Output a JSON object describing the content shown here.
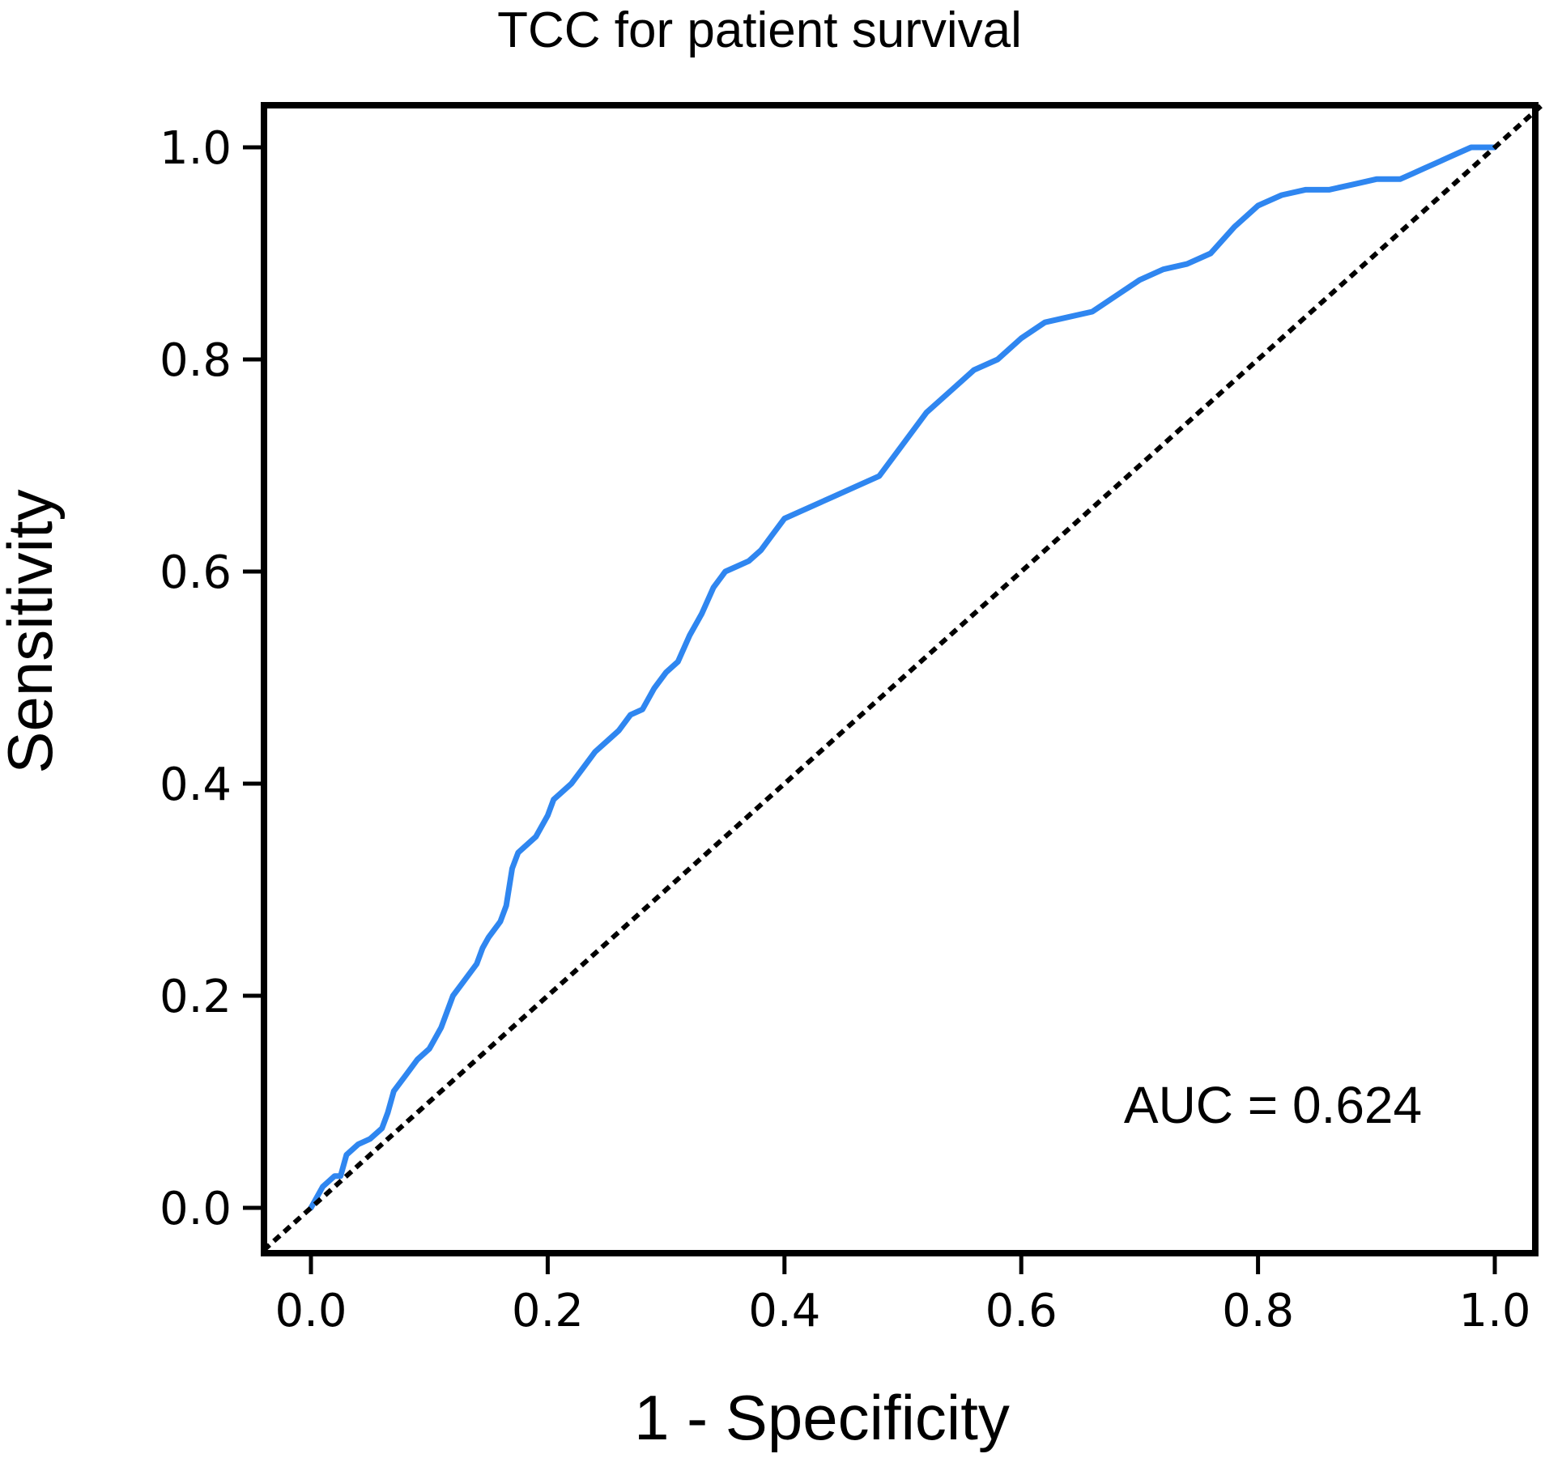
{
  "chart_data": {
    "type": "line",
    "title": "TCC for patient survival",
    "xlabel": "1 - Specificity",
    "ylabel": "Sensitivity",
    "xlim": [
      0,
      1
    ],
    "ylim": [
      0,
      1
    ],
    "x_ticks": [
      "0.0",
      "0.2",
      "0.4",
      "0.6",
      "0.8",
      "1.0"
    ],
    "y_ticks": [
      "0.0",
      "0.2",
      "0.4",
      "0.6",
      "0.8",
      "1.0"
    ],
    "annotation": "AUC = 0.624",
    "grid": false,
    "colors": {
      "roc": "#2f86f0",
      "reference": "#000000",
      "frame": "#000000"
    },
    "series": [
      {
        "name": "ROC curve",
        "style": "solid",
        "x": [
          0.0,
          0.01,
          0.02,
          0.025,
          0.03,
          0.04,
          0.05,
          0.06,
          0.065,
          0.07,
          0.08,
          0.09,
          0.1,
          0.105,
          0.11,
          0.12,
          0.13,
          0.14,
          0.145,
          0.15,
          0.16,
          0.165,
          0.17,
          0.175,
          0.18,
          0.19,
          0.2,
          0.205,
          0.21,
          0.22,
          0.23,
          0.24,
          0.25,
          0.26,
          0.27,
          0.28,
          0.29,
          0.3,
          0.31,
          0.32,
          0.33,
          0.34,
          0.35,
          0.36,
          0.37,
          0.38,
          0.39,
          0.4,
          0.42,
          0.44,
          0.46,
          0.48,
          0.5,
          0.52,
          0.54,
          0.56,
          0.58,
          0.6,
          0.62,
          0.64,
          0.66,
          0.68,
          0.7,
          0.72,
          0.74,
          0.76,
          0.78,
          0.8,
          0.82,
          0.84,
          0.86,
          0.88,
          0.9,
          0.92,
          0.93,
          0.94,
          0.95,
          0.96,
          0.97,
          0.98,
          0.99,
          1.0
        ],
        "y": [
          0.0,
          0.02,
          0.03,
          0.03,
          0.05,
          0.06,
          0.065,
          0.075,
          0.09,
          0.11,
          0.125,
          0.14,
          0.15,
          0.16,
          0.17,
          0.2,
          0.215,
          0.23,
          0.245,
          0.255,
          0.27,
          0.285,
          0.32,
          0.335,
          0.34,
          0.35,
          0.37,
          0.385,
          0.39,
          0.4,
          0.415,
          0.43,
          0.44,
          0.45,
          0.465,
          0.47,
          0.49,
          0.505,
          0.515,
          0.54,
          0.56,
          0.585,
          0.6,
          0.605,
          0.61,
          0.62,
          0.635,
          0.65,
          0.66,
          0.67,
          0.68,
          0.69,
          0.72,
          0.75,
          0.77,
          0.79,
          0.8,
          0.82,
          0.835,
          0.84,
          0.845,
          0.86,
          0.875,
          0.885,
          0.89,
          0.9,
          0.925,
          0.945,
          0.955,
          0.96,
          0.96,
          0.965,
          0.97,
          0.97,
          0.975,
          0.98,
          0.985,
          0.99,
          0.995,
          1.0,
          1.0,
          1.0
        ]
      },
      {
        "name": "Reference line",
        "style": "dotted",
        "x": [
          -0.04,
          1.04
        ],
        "y": [
          -0.04,
          1.04
        ]
      }
    ]
  }
}
